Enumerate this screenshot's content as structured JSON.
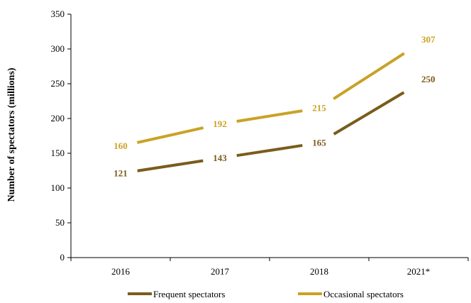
{
  "chart_data": {
    "type": "line",
    "title": "",
    "xlabel": "",
    "ylabel": "Number of spectators (millions)",
    "ylim": [
      0,
      350
    ],
    "ytick_step": 50,
    "categories": [
      "2016",
      "2017",
      "2018",
      "2021*"
    ],
    "grid": false,
    "legend_position": "bottom",
    "series": [
      {
        "name": "Frequent spectators",
        "values": [
          121,
          143,
          165,
          250
        ],
        "color": "#7a5c1b"
      },
      {
        "name": "Occasional spectators",
        "values": [
          160,
          192,
          215,
          307
        ],
        "color": "#c9a227"
      }
    ]
  }
}
